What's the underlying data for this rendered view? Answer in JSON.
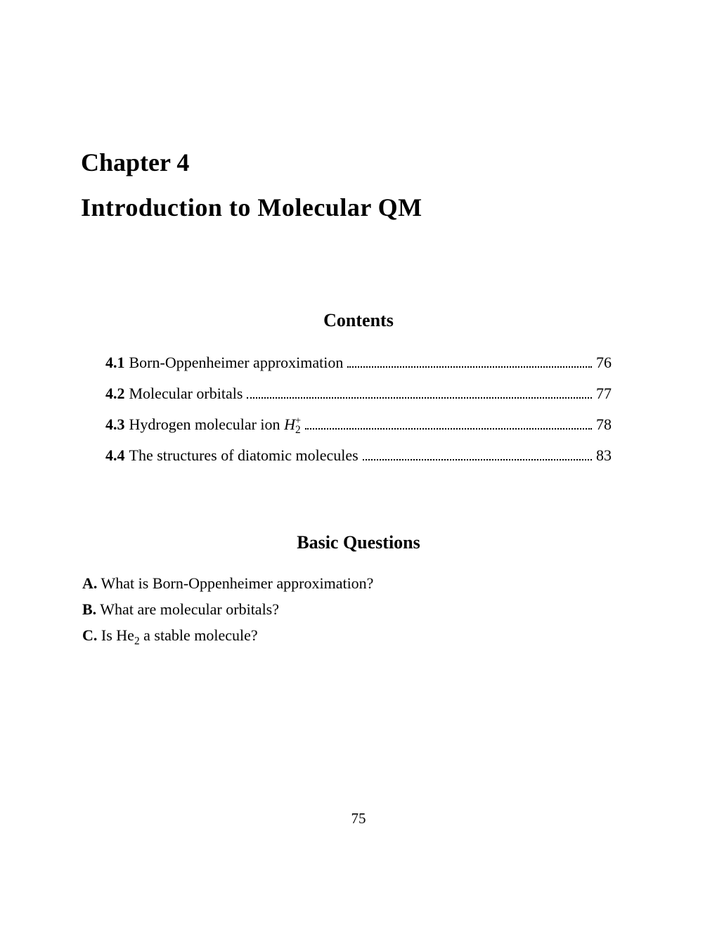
{
  "chapter": {
    "label": "Chapter 4",
    "title": "Introduction to Molecular QM"
  },
  "contents": {
    "heading": "Contents",
    "entries": [
      {
        "num": "4.1",
        "label": "Born-Oppenheimer approximation",
        "page": "76"
      },
      {
        "num": "4.2",
        "label": "Molecular orbitals",
        "page": "77"
      },
      {
        "num": "4.3",
        "label_html": "Hydrogen molecular ion <span class='italic'>H</span><span class='sup'>+</span><span class='sub' style='margin-left:-8px'>2</span>",
        "page": "78"
      },
      {
        "num": "4.4",
        "label": "The structures of diatomic molecules",
        "page": "83"
      }
    ]
  },
  "questions": {
    "heading": "Basic Questions",
    "items": [
      {
        "label": "A.",
        "text": "What is Born-Oppenheimer approximation?"
      },
      {
        "label": "B.",
        "text": "What are molecular orbitals?"
      },
      {
        "label": "C.",
        "text_html": "Is He<span class='sub'>2</span> a stable molecule?"
      }
    ]
  },
  "page_number": "75"
}
